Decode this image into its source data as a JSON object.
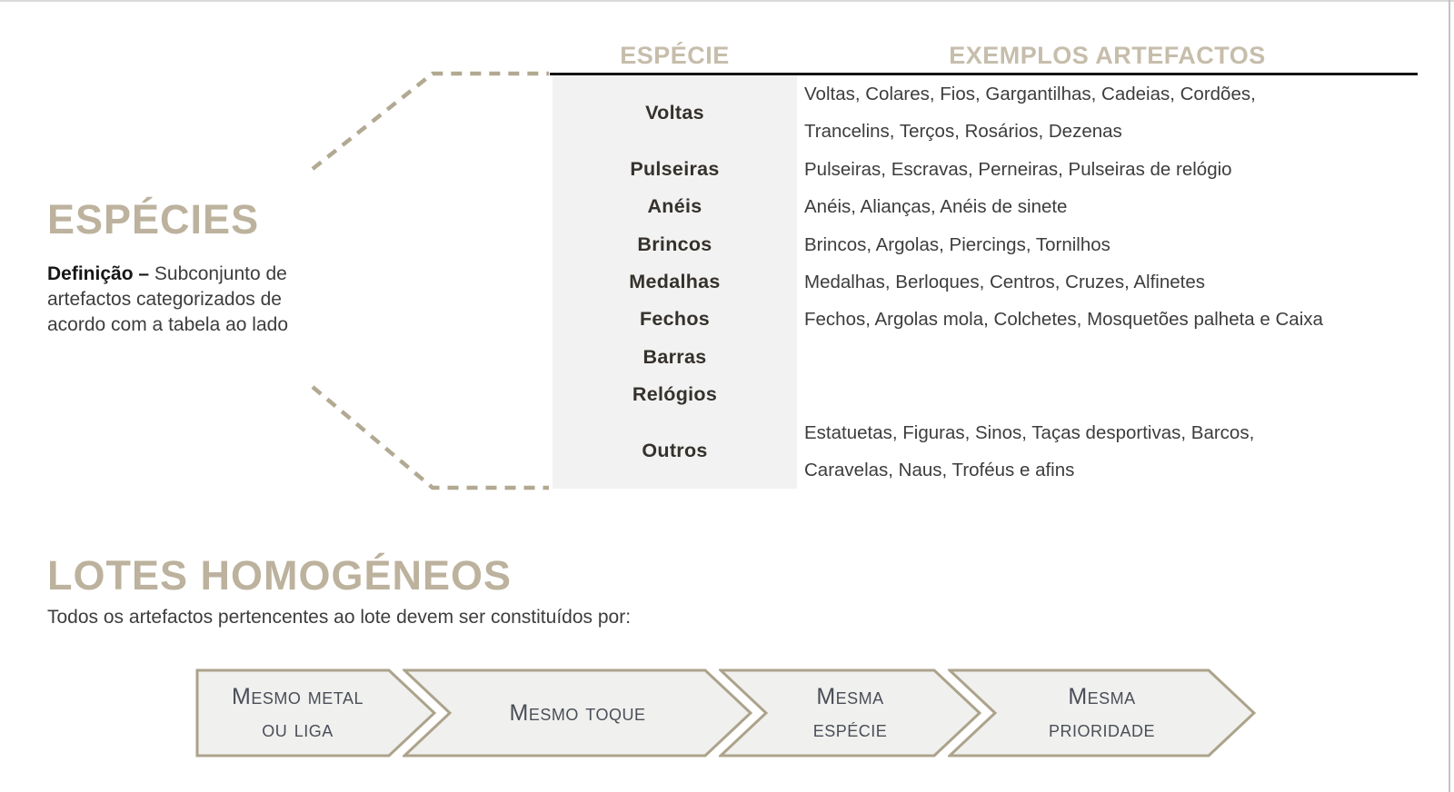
{
  "left_panel": {
    "title": "ESPÉCIES",
    "definition_label": "Definição –",
    "definition_text": "Subconjunto de artefactos categorizados de acordo com a tabela ao lado"
  },
  "table": {
    "header_species": "ESPÉCIE",
    "header_examples": "EXEMPLOS ARTEFACTOS",
    "rows": [
      {
        "species": "Voltas",
        "example_lines": [
          "Voltas, Colares, Fios, Gargantilhas, Cadeias, Cordões,",
          "Trancelins, Terços, Rosários, Dezenas"
        ]
      },
      {
        "species": "Pulseiras",
        "example_lines": [
          "Pulseiras, Escravas, Perneiras, Pulseiras de relógio"
        ]
      },
      {
        "species": "Anéis",
        "example_lines": [
          "Anéis, Alianças, Anéis de sinete"
        ]
      },
      {
        "species": "Brincos",
        "example_lines": [
          "Brincos, Argolas, Piercings, Tornilhos"
        ]
      },
      {
        "species": "Medalhas",
        "example_lines": [
          "Medalhas, Berloques, Centros, Cruzes, Alfinetes"
        ]
      },
      {
        "species": "Fechos",
        "example_lines": [
          "Fechos, Argolas mola, Colchetes, Mosquetões palheta e Caixa"
        ]
      },
      {
        "species": "Barras",
        "example_lines": []
      },
      {
        "species": "Relógios",
        "example_lines": []
      },
      {
        "species": "Outros",
        "example_lines": [
          "Estatuetas, Figuras, Sinos, Taças desportivas, Barcos,",
          "Caravelas, Naus, Troféus e afins"
        ]
      }
    ]
  },
  "lots_section": {
    "title": "LOTES HOMOGÉNEOS",
    "subtitle": "Todos os artefactos pertencentes ao lote devem ser constituídos por:",
    "steps": [
      {
        "label_lines": [
          "Mesmo metal",
          "ou liga"
        ]
      },
      {
        "label_lines": [
          "Mesmo toque"
        ]
      },
      {
        "label_lines": [
          "Mesma",
          "espécie"
        ]
      },
      {
        "label_lines": [
          "Mesma",
          "prioridade"
        ]
      }
    ]
  },
  "colors": {
    "accent_tan": "#BCB29D",
    "header_tan": "#C6BDAB",
    "dashed_line": "#B2A992",
    "chevron_border": "#ACA38B",
    "chevron_fill": "#F0F0EE",
    "chevron_text": "#4A4E58",
    "species_col_bg": "#F2F2F2",
    "header_rule": "#141414",
    "body_text": "#3D3D3D",
    "species_text": "#35312C"
  }
}
